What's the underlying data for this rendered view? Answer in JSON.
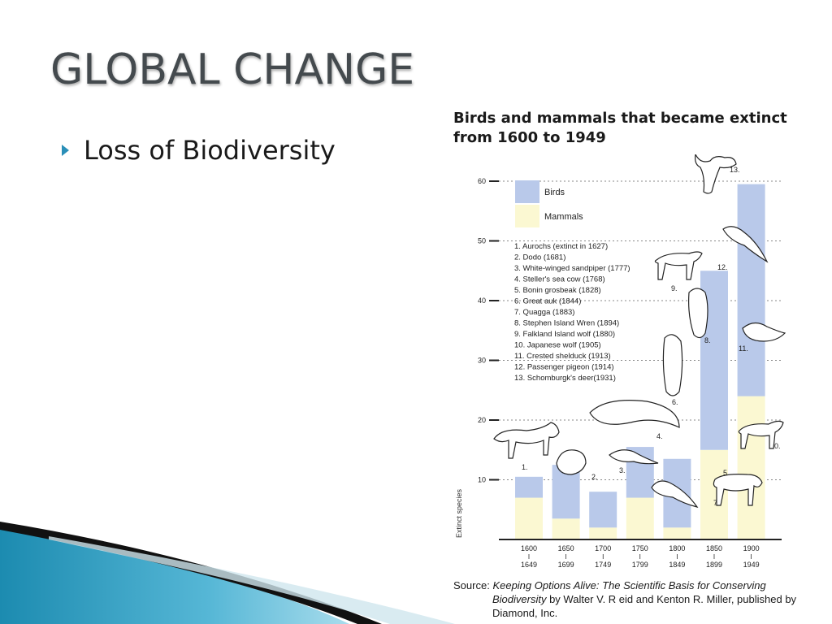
{
  "slide": {
    "title": "GLOBAL CHANGE",
    "bullets": [
      "Loss of Biodiversity"
    ]
  },
  "source": {
    "label": "Source:",
    "title_part1": "Keeping Options Alive: The Scientific Basis for Conserving",
    "title_part2": "Biodiversity",
    "rest_line2": " by Walter V. R eid and Kenton R. Miller, published by",
    "rest_line3": "Diamond, Inc."
  },
  "colors": {
    "birds": "#b9c9ea",
    "mammals": "#fbf8d2",
    "accent": "#2a8fb8",
    "title": "#444a4e"
  },
  "chart_data": {
    "type": "bar",
    "title": "Birds and mammals that became extinct from 1600 to 1949",
    "ylabel": "Extinct species",
    "xlabel": "",
    "ylim": [
      0,
      60
    ],
    "yticks": [
      10,
      20,
      30,
      40,
      50,
      60
    ],
    "grid": true,
    "stacked": true,
    "legend_position": "top-left",
    "categories": [
      "1600 I 1649",
      "1650 I 1699",
      "1700 I 1749",
      "1750 I 1799",
      "1800 I 1849",
      "1850 I 1899",
      "1900 I 1949"
    ],
    "category_labels": [
      {
        "top": "1600",
        "mid": "I",
        "bottom": "1649"
      },
      {
        "top": "1650",
        "mid": "I",
        "bottom": "1699"
      },
      {
        "top": "1700",
        "mid": "I",
        "bottom": "1749"
      },
      {
        "top": "1750",
        "mid": "I",
        "bottom": "1799"
      },
      {
        "top": "1800",
        "mid": "I",
        "bottom": "1849"
      },
      {
        "top": "1850",
        "mid": "I",
        "bottom": "1899"
      },
      {
        "top": "1900",
        "mid": "I",
        "bottom": "1949"
      }
    ],
    "series": [
      {
        "name": "Mammals",
        "values": [
          7,
          3.5,
          2,
          7,
          2,
          15,
          24
        ]
      },
      {
        "name": "Birds",
        "values": [
          3.5,
          9,
          6,
          8.5,
          11.5,
          30,
          35.5
        ]
      }
    ],
    "legend_order": [
      "Birds",
      "Mammals"
    ],
    "annotations": [
      "1. Aurochs (extinct in 1627)",
      "2. Dodo (1681)",
      "3. White-winged sandpiper (1777)",
      "4. Steller's sea cow (1768)",
      "5. Bonin grosbeak (1828)",
      "6. Great auk (1844)",
      "7. Quagga (1883)",
      "8. Stephen Island Wren (1894)",
      "9. Falkland Island wolf (1880)",
      "10. Japanese wolf (1905)",
      "11. Crested shelduck (1913)",
      "12. Passenger pigeon (1914)",
      "13. Schomburgk's deer(1931)"
    ],
    "marker_labels": [
      "1.",
      "2.",
      "3.",
      "4.",
      "5.",
      "6.",
      "7.",
      "8.",
      "9.",
      "10.",
      "11.",
      "12.",
      "13."
    ]
  }
}
